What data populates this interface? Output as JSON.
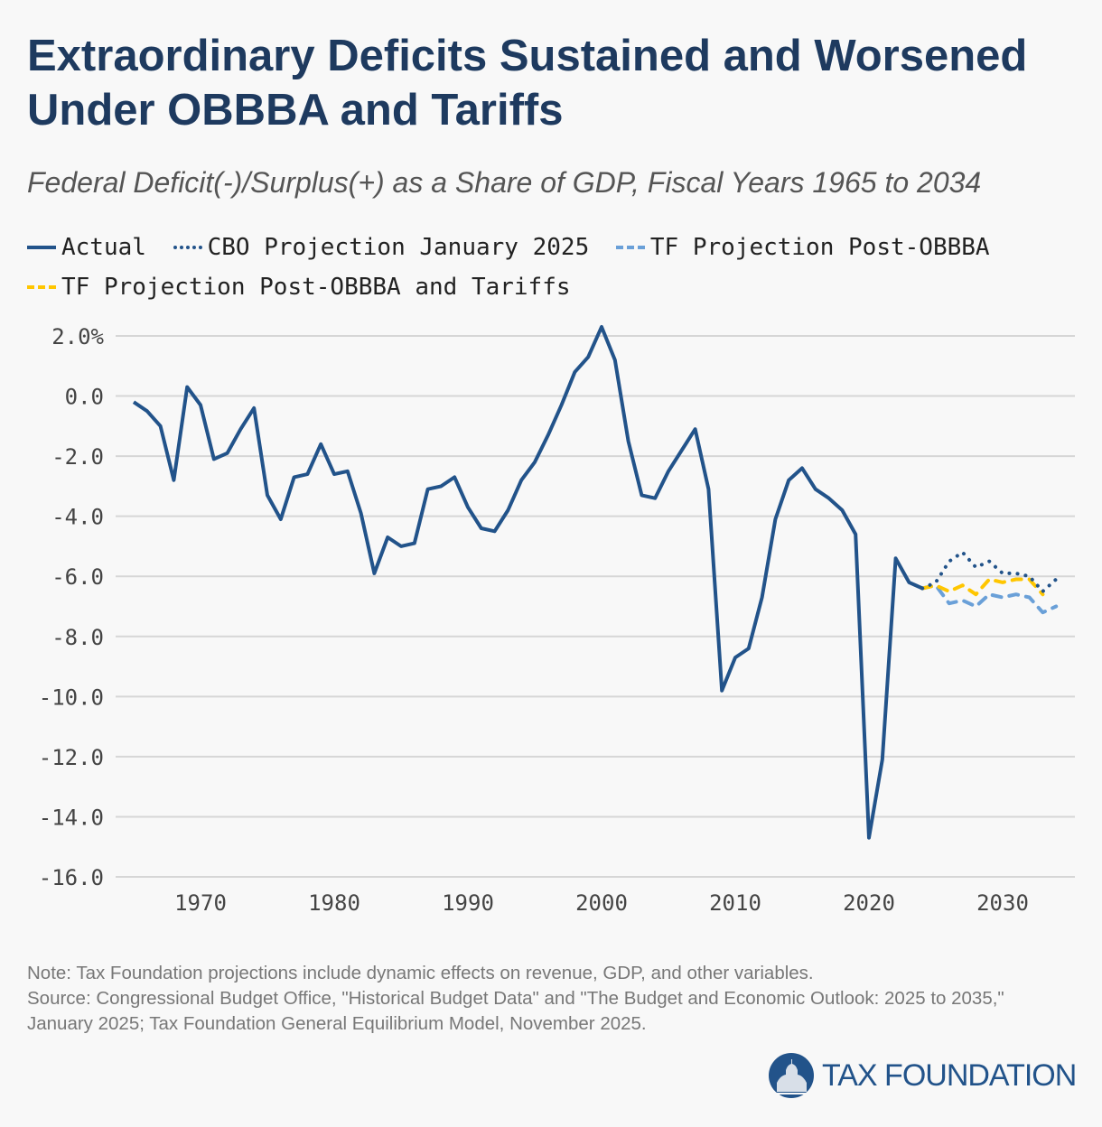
{
  "title": "Extraordinary Deficits Sustained and Worsened Under OBBBA and Tariffs",
  "subtitle": "Federal Deficit(-)/Surplus(+) as a Share of GDP, Fiscal Years 1965 to 2034",
  "legend": [
    "Actual",
    "CBO Projection January 2025",
    "TF Projection Post-OBBBA",
    "TF Projection Post-OBBBA and Tariffs"
  ],
  "note": "Note: Tax Foundation projections include dynamic effects on revenue, GDP, and other variables.",
  "source": "Source: Congressional Budget Office, \"Historical Budget Data\" and \"The Budget and Economic Outlook: 2025 to 2035,\" January 2025; Tax Foundation General Equilibrium Model, November 2025.",
  "logo_text": "TAX FOUNDATION",
  "colors": {
    "actual": "#22538a",
    "cbo": "#22538a",
    "tf": "#6aa0d8",
    "tariff": "#ffc600",
    "grid": "#d6d6d6",
    "title": "#1e3a5f"
  },
  "chart_data": {
    "type": "line",
    "title": "Extraordinary Deficits Sustained and Worsened Under OBBBA and Tariffs",
    "xlabel": "",
    "ylabel": "",
    "ylim": [
      -16,
      2
    ],
    "xlim": [
      1965,
      2034
    ],
    "yticks": [
      "2.0%",
      "0.0",
      "-2.0",
      "-4.0",
      "-6.0",
      "-8.0",
      "-10.0",
      "-12.0",
      "-14.0",
      "-16.0"
    ],
    "ytick_values": [
      2,
      0,
      -2,
      -4,
      -6,
      -8,
      -10,
      -12,
      -14,
      -16
    ],
    "xticks": [
      1970,
      1980,
      1990,
      2000,
      2010,
      2020,
      2030
    ],
    "grid": true,
    "legend_position": "top-left",
    "series": [
      {
        "name": "Actual",
        "style": "solid",
        "x_start": 1965,
        "values": [
          -0.2,
          -0.5,
          -1.0,
          -2.8,
          0.3,
          -0.3,
          -2.1,
          -1.9,
          -1.1,
          -0.4,
          -3.3,
          -4.1,
          -2.7,
          -2.6,
          -1.6,
          -2.6,
          -2.5,
          -3.9,
          -5.9,
          -4.7,
          -5.0,
          -4.9,
          -3.1,
          -3.0,
          -2.7,
          -3.7,
          -4.4,
          -4.5,
          -3.8,
          -2.8,
          -2.2,
          -1.3,
          -0.3,
          0.8,
          1.3,
          2.3,
          1.2,
          -1.5,
          -3.3,
          -3.4,
          -2.5,
          -1.8,
          -1.1,
          -3.1,
          -9.8,
          -8.7,
          -8.4,
          -6.7,
          -4.1,
          -2.8,
          -2.4,
          -3.1,
          -3.4,
          -3.8,
          -4.6,
          -14.7,
          -12.1,
          -5.4,
          -6.2,
          -6.4
        ]
      },
      {
        "name": "CBO Projection January 2025",
        "style": "dotted",
        "x_start": 2024,
        "values": [
          -6.4,
          -6.2,
          -5.5,
          -5.2,
          -5.7,
          -5.5,
          -5.9,
          -5.9,
          -6.0,
          -6.5,
          -6.1
        ]
      },
      {
        "name": "TF Projection Post-OBBBA",
        "style": "dashed",
        "x_start": 2024,
        "values": [
          -6.4,
          -6.3,
          -6.9,
          -6.8,
          -7.0,
          -6.6,
          -6.7,
          -6.6,
          -6.7,
          -7.2,
          -7.0
        ]
      },
      {
        "name": "TF Projection Post-OBBBA and Tariffs",
        "style": "dashed",
        "x_start": 2024,
        "values": [
          -6.4,
          -6.3,
          -6.5,
          -6.3,
          -6.6,
          -6.1,
          -6.2,
          -6.1,
          -6.1,
          -6.6
        ]
      }
    ]
  }
}
